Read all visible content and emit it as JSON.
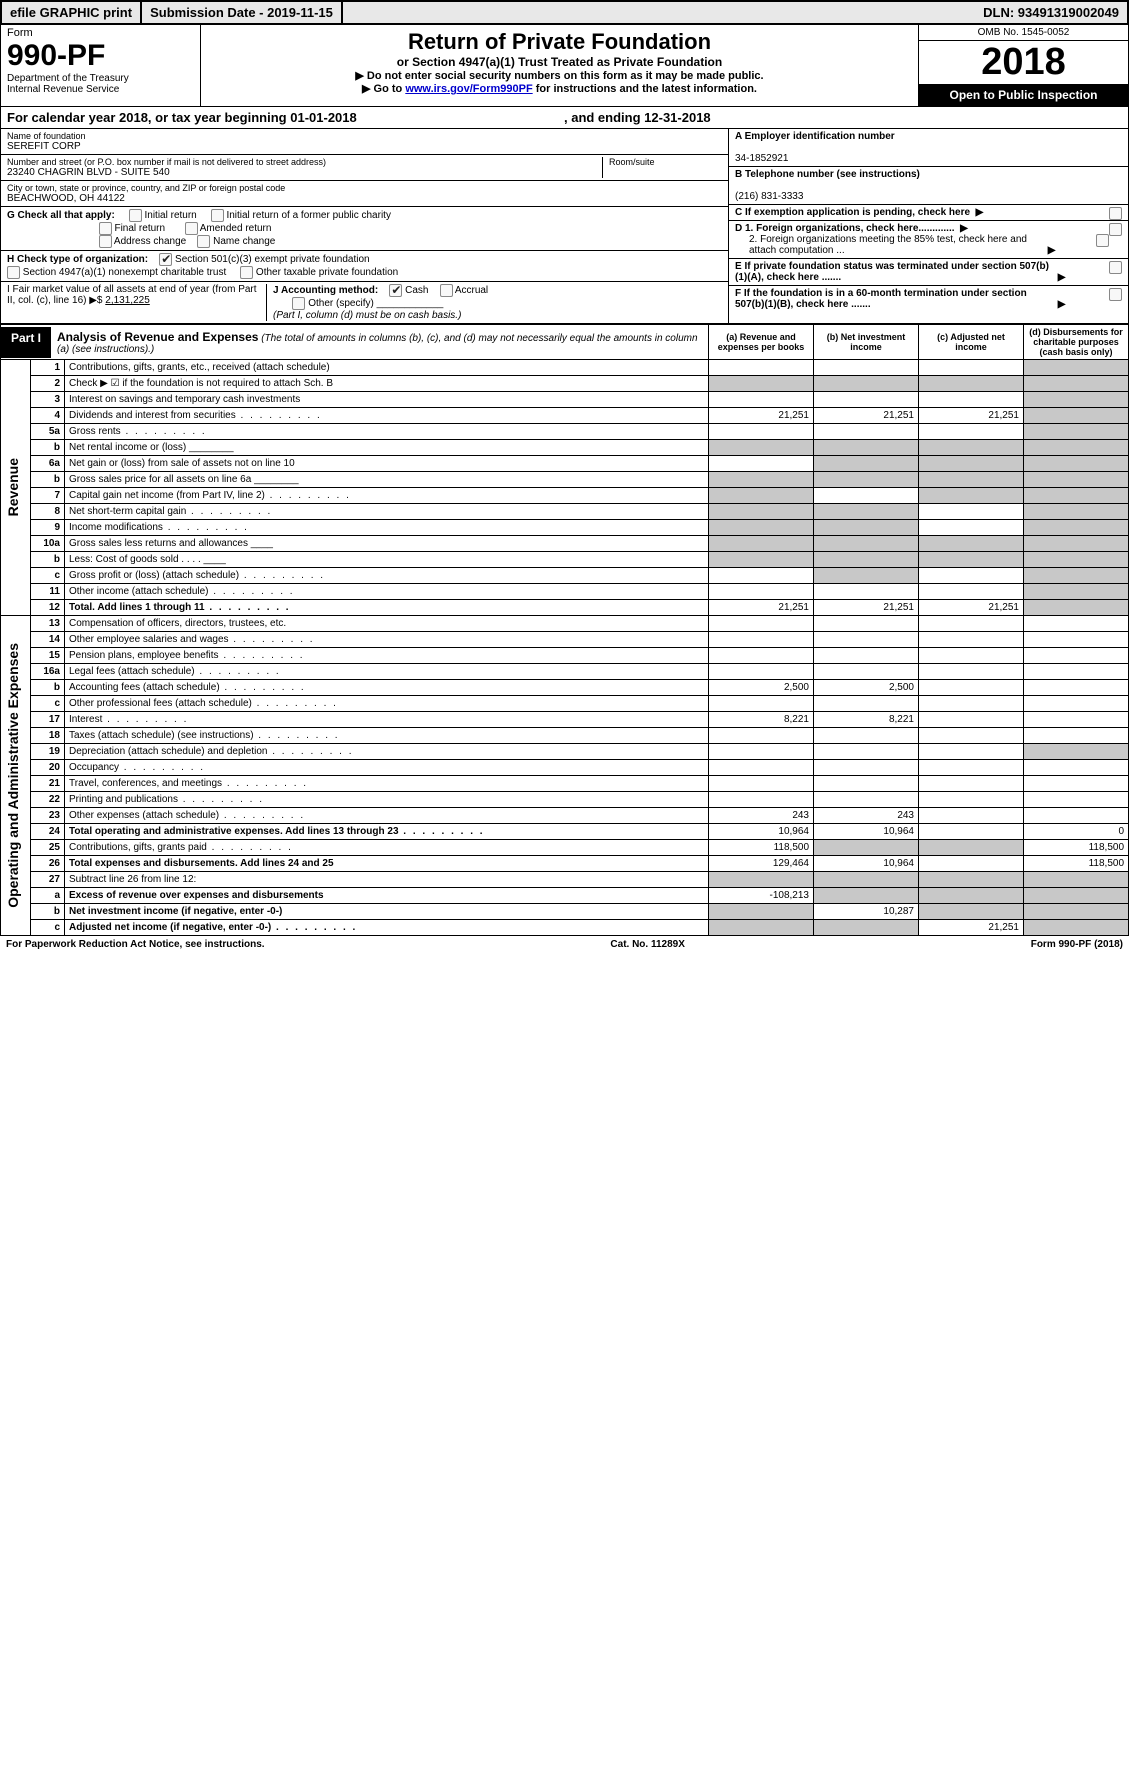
{
  "topbar": {
    "efile": "efile GRAPHIC print",
    "submission": "Submission Date - 2019-11-15",
    "dln": "DLN: 93491319002049"
  },
  "header": {
    "form_label": "Form",
    "form_num": "990-PF",
    "dept": "Department of the Treasury\nInternal Revenue Service",
    "title": "Return of Private Foundation",
    "subtitle": "or Section 4947(a)(1) Trust Treated as Private Foundation",
    "instr1": "▶ Do not enter social security numbers on this form as it may be made public.",
    "instr2_prefix": "▶ Go to ",
    "instr2_link": "www.irs.gov/Form990PF",
    "instr2_suffix": " for instructions and the latest information.",
    "omb": "OMB No. 1545-0052",
    "year": "2018",
    "open": "Open to Public Inspection"
  },
  "cal_year": {
    "prefix": "For calendar year 2018, or tax year beginning ",
    "begin": "01-01-2018",
    "mid": " , and ending ",
    "end": "12-31-2018"
  },
  "info": {
    "name_label": "Name of foundation",
    "name": "SEREFIT CORP",
    "addr_label": "Number and street (or P.O. box number if mail is not delivered to street address)",
    "addr": "23240 CHAGRIN BLVD - SUITE 540",
    "room_label": "Room/suite",
    "city_label": "City or town, state or province, country, and ZIP or foreign postal code",
    "city": "BEACHWOOD, OH  44122",
    "a_label": "A Employer identification number",
    "a_val": "34-1852921",
    "b_label": "B Telephone number (see instructions)",
    "b_val": "(216) 831-3333",
    "c_label": "C If exemption application is pending, check here",
    "d1_label": "D 1. Foreign organizations, check here.............",
    "d2_label": "2. Foreign organizations meeting the 85% test, check here and attach computation ...",
    "e_label": "E  If private foundation status was terminated under section 507(b)(1)(A), check here .......",
    "f_label": "F  If the foundation is in a 60-month termination under section 507(b)(1)(B), check here ......."
  },
  "g": {
    "label": "G Check all that apply:",
    "initial": "Initial return",
    "initial_former": "Initial return of a former public charity",
    "final": "Final return",
    "amended": "Amended return",
    "addr_change": "Address change",
    "name_change": "Name change"
  },
  "h": {
    "label": "H Check type of organization:",
    "opt1": "Section 501(c)(3) exempt private foundation",
    "opt2": "Section 4947(a)(1) nonexempt charitable trust",
    "opt3": "Other taxable private foundation"
  },
  "i": {
    "label": "I Fair market value of all assets at end of year (from Part II, col. (c), line 16) ▶$ ",
    "val": "2,131,225"
  },
  "j": {
    "label": "J Accounting method:",
    "cash": "Cash",
    "accrual": "Accrual",
    "other": "Other (specify)",
    "note": "(Part I, column (d) must be on cash basis.)"
  },
  "part1": {
    "label": "Part I",
    "title": "Analysis of Revenue and Expenses",
    "note": "(The total of amounts in columns (b), (c), and (d) may not necessarily equal the amounts in column (a) (see instructions).)",
    "col_a": "(a)   Revenue and expenses per books",
    "col_b": "(b)  Net investment income",
    "col_c": "(c)  Adjusted net income",
    "col_d": "(d)  Disbursements for charitable purposes (cash basis only)"
  },
  "side_labels": {
    "revenue": "Revenue",
    "expenses": "Operating and Administrative Expenses"
  },
  "rows": [
    {
      "n": "1",
      "desc": "Contributions, gifts, grants, etc., received (attach schedule)",
      "a": "",
      "b": "",
      "c": "",
      "d": "",
      "d_grey": true
    },
    {
      "n": "2",
      "desc": "Check ▶ ☑ if the foundation is not required to attach Sch. B",
      "nocols": true
    },
    {
      "n": "3",
      "desc": "Interest on savings and temporary cash investments",
      "a": "",
      "b": "",
      "c": "",
      "d": "",
      "d_grey": true
    },
    {
      "n": "4",
      "desc": "Dividends and interest from securities",
      "a": "21,251",
      "b": "21,251",
      "c": "21,251",
      "d": "",
      "d_grey": true,
      "dots": true
    },
    {
      "n": "5a",
      "desc": "Gross rents",
      "a": "",
      "b": "",
      "c": "",
      "d": "",
      "d_grey": true,
      "dots": true
    },
    {
      "n": "b",
      "desc": "Net rental income or (loss) ________",
      "nocols": true
    },
    {
      "n": "6a",
      "desc": "Net gain or (loss) from sale of assets not on line 10",
      "a": "",
      "b": "",
      "c": "",
      "d": "",
      "b_grey": true,
      "c_grey": true,
      "d_grey": true
    },
    {
      "n": "b",
      "desc": "Gross sales price for all assets on line 6a ________",
      "nocols": true
    },
    {
      "n": "7",
      "desc": "Capital gain net income (from Part IV, line 2)",
      "a": "",
      "b": "",
      "c": "",
      "d": "",
      "a_grey": true,
      "c_grey": true,
      "d_grey": true,
      "dots": true
    },
    {
      "n": "8",
      "desc": "Net short-term capital gain",
      "a": "",
      "b": "",
      "c": "",
      "d": "",
      "a_grey": true,
      "b_grey": true,
      "d_grey": true,
      "dots": true
    },
    {
      "n": "9",
      "desc": "Income modifications",
      "a": "",
      "b": "",
      "c": "",
      "d": "",
      "a_grey": true,
      "b_grey": true,
      "d_grey": true,
      "dots": true
    },
    {
      "n": "10a",
      "desc": "Gross sales less returns and allowances ____",
      "nocols": true
    },
    {
      "n": "b",
      "desc": "Less: Cost of goods sold      .  .  .  .  ____",
      "nocols": true
    },
    {
      "n": "c",
      "desc": "Gross profit or (loss) (attach schedule)",
      "a": "",
      "b": "",
      "c": "",
      "d": "",
      "b_grey": true,
      "d_grey": true,
      "dots": true
    },
    {
      "n": "11",
      "desc": "Other income (attach schedule)",
      "a": "",
      "b": "",
      "c": "",
      "d": "",
      "d_grey": true,
      "dots": true
    },
    {
      "n": "12",
      "desc": "Total. Add lines 1 through 11",
      "a": "21,251",
      "b": "21,251",
      "c": "21,251",
      "d": "",
      "d_grey": true,
      "bold": true,
      "dots": true
    },
    {
      "n": "13",
      "desc": "Compensation of officers, directors, trustees, etc.",
      "a": "",
      "b": "",
      "c": "",
      "d": ""
    },
    {
      "n": "14",
      "desc": "Other employee salaries and wages",
      "a": "",
      "b": "",
      "c": "",
      "d": "",
      "dots": true
    },
    {
      "n": "15",
      "desc": "Pension plans, employee benefits",
      "a": "",
      "b": "",
      "c": "",
      "d": "",
      "dots": true
    },
    {
      "n": "16a",
      "desc": "Legal fees (attach schedule)",
      "a": "",
      "b": "",
      "c": "",
      "d": "",
      "dots": true
    },
    {
      "n": "b",
      "desc": "Accounting fees (attach schedule)",
      "a": "2,500",
      "b": "2,500",
      "c": "",
      "d": "",
      "dots": true
    },
    {
      "n": "c",
      "desc": "Other professional fees (attach schedule)",
      "a": "",
      "b": "",
      "c": "",
      "d": "",
      "dots": true
    },
    {
      "n": "17",
      "desc": "Interest",
      "a": "8,221",
      "b": "8,221",
      "c": "",
      "d": "",
      "dots": true
    },
    {
      "n": "18",
      "desc": "Taxes (attach schedule) (see instructions)",
      "a": "",
      "b": "",
      "c": "",
      "d": "",
      "dots": true
    },
    {
      "n": "19",
      "desc": "Depreciation (attach schedule) and depletion",
      "a": "",
      "b": "",
      "c": "",
      "d": "",
      "d_grey": true,
      "dots": true
    },
    {
      "n": "20",
      "desc": "Occupancy",
      "a": "",
      "b": "",
      "c": "",
      "d": "",
      "dots": true
    },
    {
      "n": "21",
      "desc": "Travel, conferences, and meetings",
      "a": "",
      "b": "",
      "c": "",
      "d": "",
      "dots": true
    },
    {
      "n": "22",
      "desc": "Printing and publications",
      "a": "",
      "b": "",
      "c": "",
      "d": "",
      "dots": true
    },
    {
      "n": "23",
      "desc": "Other expenses (attach schedule)",
      "a": "243",
      "b": "243",
      "c": "",
      "d": "",
      "dots": true
    },
    {
      "n": "24",
      "desc": "Total operating and administrative expenses. Add lines 13 through 23",
      "a": "10,964",
      "b": "10,964",
      "c": "",
      "d": "0",
      "bold": true,
      "dots": true
    },
    {
      "n": "25",
      "desc": "Contributions, gifts, grants paid",
      "a": "118,500",
      "b": "",
      "c": "",
      "d": "118,500",
      "b_grey": true,
      "c_grey": true,
      "dots": true
    },
    {
      "n": "26",
      "desc": "Total expenses and disbursements. Add lines 24 and 25",
      "a": "129,464",
      "b": "10,964",
      "c": "",
      "d": "118,500",
      "bold": true
    },
    {
      "n": "27",
      "desc": "Subtract line 26 from line 12:",
      "nocols_grey": true
    },
    {
      "n": "a",
      "desc": "Excess of revenue over expenses and disbursements",
      "a": "-108,213",
      "b": "",
      "c": "",
      "d": "",
      "b_grey": true,
      "c_grey": true,
      "d_grey": true,
      "bold": true
    },
    {
      "n": "b",
      "desc": "Net investment income (if negative, enter -0-)",
      "a": "",
      "b": "10,287",
      "c": "",
      "d": "",
      "a_grey": true,
      "c_grey": true,
      "d_grey": true,
      "bold": true
    },
    {
      "n": "c",
      "desc": "Adjusted net income (if negative, enter -0-)",
      "a": "",
      "b": "",
      "c": "21,251",
      "d": "",
      "a_grey": true,
      "b_grey": true,
      "d_grey": true,
      "bold": true,
      "dots": true
    }
  ],
  "footer": {
    "left": "For Paperwork Reduction Act Notice, see instructions.",
    "mid": "Cat. No. 11289X",
    "right": "Form 990-PF (2018)"
  }
}
